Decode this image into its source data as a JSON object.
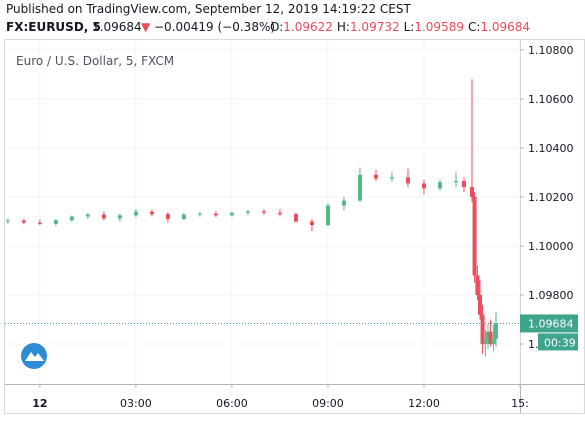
{
  "header": {
    "published": "Published on TradingView.com, September 12, 2019 14:19:22 CEST",
    "symbol": "FX:EURUSD, 5",
    "price": "1.09684",
    "arrow": "▼",
    "change": "−0.00419 (−0.38%)",
    "ohlc": [
      {
        "label": "O:",
        "value": "1.09622"
      },
      {
        "label": "H:",
        "value": "1.09732"
      },
      {
        "label": "L:",
        "value": "1.09589"
      },
      {
        "label": "C:",
        "value": "1.09684"
      }
    ]
  },
  "chart_data": {
    "type": "candlestick",
    "legend": "Euro / U.S. Dollar, 5, FXCM",
    "up_color": "#53b987",
    "down_color": "#eb4d5c",
    "grid": true,
    "xlim": [
      -1.09,
      15
    ],
    "ylim": [
      1.09437,
      1.1084
    ],
    "xticks": [
      {
        "value": 0,
        "label": "12"
      },
      {
        "value": 3,
        "label": "03:00"
      },
      {
        "value": 6,
        "label": "06:00"
      },
      {
        "value": 9,
        "label": "09:00"
      },
      {
        "value": 12,
        "label": "12:00"
      },
      {
        "value": 15,
        "label": "15:"
      }
    ],
    "yticks": [
      {
        "value": 1.108,
        "label": "1.10800"
      },
      {
        "value": 1.106,
        "label": "1.10600"
      },
      {
        "value": 1.104,
        "label": "1.10400"
      },
      {
        "value": 1.102,
        "label": "1.10200"
      },
      {
        "value": 1.1,
        "label": "1.10000"
      },
      {
        "value": 1.098,
        "label": "1.09800"
      },
      {
        "value": 1.096,
        "label": "1.09600"
      }
    ],
    "last_price": {
      "value": 1.09684,
      "label": "1.09684"
    },
    "countdown": "00:39",
    "x": [
      -1.0,
      -0.5,
      0.0,
      0.5,
      1.0,
      1.5,
      2.0,
      2.5,
      3.0,
      3.5,
      4.0,
      4.5,
      5.0,
      5.5,
      6.0,
      6.5,
      7.0,
      7.5,
      8.0,
      8.5,
      9.0,
      9.5,
      10.0,
      10.5,
      11.0,
      11.5,
      12.0,
      12.5,
      13.0,
      13.25,
      13.5,
      13.58,
      13.67,
      13.75,
      13.83,
      13.92,
      14.0,
      14.08,
      14.17,
      14.25
    ],
    "open": [
      1.101,
      1.10104,
      1.10095,
      1.1009,
      1.10105,
      1.1012,
      1.10128,
      1.10112,
      1.10125,
      1.1014,
      1.1013,
      1.1011,
      1.10128,
      1.10132,
      1.10125,
      1.10135,
      1.1014,
      1.10135,
      1.1013,
      1.101,
      1.10085,
      1.10165,
      1.10185,
      1.1029,
      1.10275,
      1.1028,
      1.10255,
      1.10235,
      1.1026,
      1.10265,
      1.1024,
      1.102,
      1.0988,
      1.098,
      1.0972,
      1.096,
      1.0962,
      1.0965,
      1.096,
      1.09622
    ],
    "high": [
      1.10112,
      1.1011,
      1.10108,
      1.1011,
      1.10125,
      1.10135,
      1.1014,
      1.10132,
      1.1015,
      1.10148,
      1.10138,
      1.10135,
      1.1014,
      1.10142,
      1.1014,
      1.10148,
      1.1015,
      1.10148,
      1.10135,
      1.1011,
      1.10175,
      1.102,
      1.1032,
      1.1031,
      1.103,
      1.10315,
      1.1027,
      1.1027,
      1.103,
      1.1028,
      1.1068,
      1.1022,
      1.0992,
      1.0986,
      1.0976,
      1.0966,
      1.0968,
      1.097,
      1.0968,
      1.09732
    ],
    "low": [
      1.1009,
      1.10088,
      1.10085,
      1.10082,
      1.10098,
      1.1011,
      1.10105,
      1.101,
      1.10118,
      1.1012,
      1.10095,
      1.10105,
      1.1012,
      1.10118,
      1.1012,
      1.10125,
      1.10128,
      1.1012,
      1.10095,
      1.1006,
      1.1008,
      1.10145,
      1.1018,
      1.10265,
      1.1026,
      1.1024,
      1.1021,
      1.10225,
      1.1024,
      1.1022,
      1.1018,
      1.0985,
      1.0978,
      1.097,
      1.0956,
      1.0955,
      1.0958,
      1.0959,
      1.0957,
      1.09589
    ],
    "close": [
      1.10104,
      1.10095,
      1.1009,
      1.10105,
      1.1012,
      1.10128,
      1.10112,
      1.10125,
      1.1014,
      1.1013,
      1.1011,
      1.10128,
      1.10132,
      1.10125,
      1.10135,
      1.1014,
      1.10135,
      1.1013,
      1.101,
      1.10085,
      1.10165,
      1.10185,
      1.1029,
      1.10275,
      1.1028,
      1.10255,
      1.10235,
      1.1026,
      1.10265,
      1.1024,
      1.102,
      1.0988,
      1.098,
      1.0972,
      1.096,
      1.0962,
      1.0965,
      1.096,
      1.09622,
      1.09684
    ]
  }
}
